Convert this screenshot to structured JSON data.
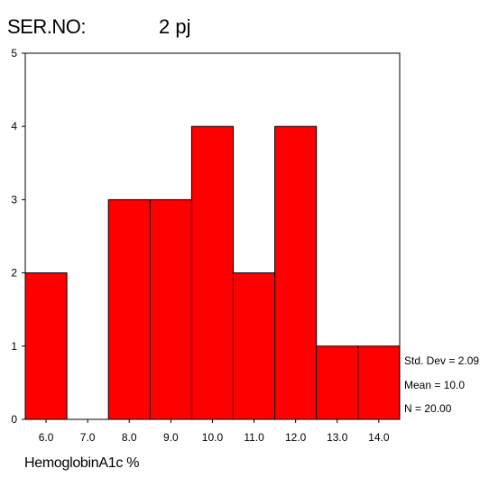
{
  "header": {
    "label": "SER.NO:",
    "value": "2  pj"
  },
  "chart_data": {
    "type": "bar",
    "subtype": "histogram",
    "categories": [
      "6.0",
      "7.0",
      "8.0",
      "9.0",
      "10.0",
      "11.0",
      "12.0",
      "13.0",
      "14.0"
    ],
    "values": [
      2,
      0,
      3,
      3,
      4,
      2,
      4,
      1,
      1
    ],
    "xlabel": "HemoglobinA1c %",
    "ylabel": "",
    "ylim": [
      0,
      5
    ],
    "yticks": [
      "0",
      "1",
      "2",
      "3",
      "4",
      "5"
    ],
    "grid": false,
    "bar_color": "#ff0000",
    "stats": [
      "Std. Dev = 2.09",
      "Mean = 10.0",
      "N = 20.00"
    ]
  }
}
